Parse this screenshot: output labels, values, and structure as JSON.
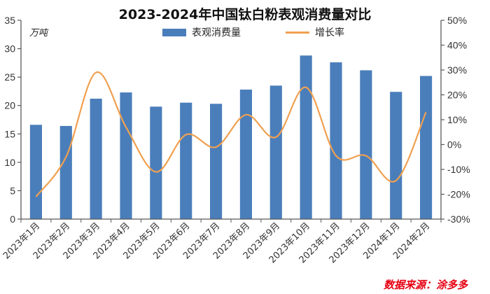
{
  "chart": {
    "title": "2023-2024年中国钛白粉表观消费量对比",
    "unit_label": "万吨",
    "source": "数据来源：涂多多",
    "legend": {
      "bar_label": "表观消费量",
      "line_label": "增长率"
    },
    "colors": {
      "bar": "#4a7ebb",
      "line": "#f0a050",
      "axis": "#595959",
      "source": "#e60012"
    }
  },
  "chart_data": {
    "type": "bar+line",
    "title": "2023-2024年中国钛白粉表观消费量对比",
    "xlabel": "",
    "ylabel": "万吨",
    "y2label": "增长率",
    "categories": [
      "2023年1月",
      "2023年2月",
      "2023年3月",
      "2023年4月",
      "2023年5月",
      "2023年6月",
      "2023年7月",
      "2023年8月",
      "2023年9月",
      "2023年10月",
      "2023年11月",
      "2023年12月",
      "2024年1月",
      "2024年2月"
    ],
    "series": [
      {
        "name": "表观消费量",
        "type": "bar",
        "axis": "left",
        "values": [
          16.6,
          16.4,
          21.2,
          22.3,
          19.8,
          20.5,
          20.3,
          22.8,
          23.5,
          28.8,
          27.6,
          26.2,
          22.4,
          25.2
        ]
      },
      {
        "name": "增长率",
        "type": "line",
        "axis": "right",
        "unit": "%",
        "values": [
          -21,
          -5,
          29,
          7,
          -11,
          4,
          -1,
          12,
          3,
          23,
          -4.5,
          -4.5,
          -14.5,
          13
        ]
      }
    ],
    "ylim": [
      0,
      35
    ],
    "yticks": [
      0,
      5,
      10,
      15,
      20,
      25,
      30,
      35
    ],
    "y2lim": [
      -30,
      50
    ],
    "y2ticks": [
      "-30%",
      "-20%",
      "-10%",
      "0%",
      "10%",
      "20%",
      "30%",
      "40%",
      "50%"
    ],
    "legend_position": "top",
    "grid": false
  }
}
